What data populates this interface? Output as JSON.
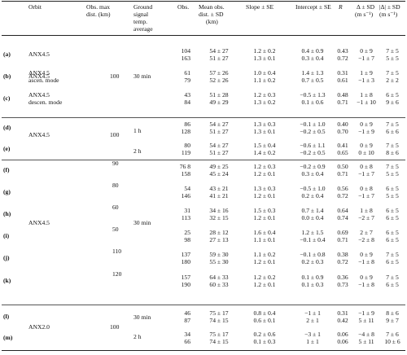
{
  "header": {
    "orbit": "Orbit",
    "obs_max": [
      "Obs. max",
      "dist. (km)"
    ],
    "ground": [
      "Ground",
      "signal",
      "temp.",
      "average"
    ],
    "obs": "Obs.",
    "mean": [
      "Mean obs.",
      "dist. ± SD",
      "(km)"
    ],
    "slope": "Slope ± SE",
    "intercept": "Intercept ± SE",
    "r": "R",
    "delta": [
      "Δ ± SD",
      "(m s⁻¹)"
    ],
    "absdelta": [
      "|Δ| ± SD",
      "(m s⁻¹)"
    ]
  },
  "groups": [
    {
      "label": "(a)",
      "orbit": [
        "ANX4.5"
      ],
      "rows": [
        [
          "104",
          "54 ± 27",
          "1.2 ± 0.2",
          "0.4 ± 0.9",
          "0.43",
          "0 ± 9",
          "7 ± 5"
        ],
        [
          "163",
          "51 ± 27",
          "1.3 ± 0.1",
          "0.3 ± 0.4",
          "0.72",
          "−1 ± 7",
          "5 ± 5"
        ]
      ]
    },
    {
      "label": "(b)",
      "orbit": [
        "ANX4.5",
        "ascen. mode"
      ],
      "rows": [
        [
          "61",
          "57 ± 26",
          "1.0 ± 0.4",
          "1.4 ± 1.3",
          "0.31",
          "1 ± 9",
          "7 ± 5"
        ],
        [
          "79",
          "52 ± 26",
          "1.1 ± 0.2",
          "0.7 ± 0.5",
          "0.61",
          "−1 ± 3",
          "2 ± 2"
        ]
      ]
    },
    {
      "label": "(c)",
      "orbit": [
        "ANX4.5",
        "descen. mode"
      ],
      "rows": [
        [
          "43",
          "51 ± 28",
          "1.2 ± 0.3",
          "−0.5 ± 1.3",
          "0.48",
          "1 ± 8",
          "6 ± 5"
        ],
        [
          "84",
          "49 ± 29",
          "1.3 ± 0.2",
          "0.1 ± 0.6",
          "0.71",
          "−1 ± 10",
          "9 ± 6"
        ]
      ]
    },
    {
      "label": "(d)",
      "rows": [
        [
          "86",
          "54 ± 27",
          "1.3 ± 0.3",
          "−0.1 ± 1.0",
          "0.40",
          "0 ± 9",
          "7 ± 5"
        ],
        [
          "128",
          "51 ± 27",
          "1.3 ± 0.1",
          "−0.2 ± 0.5",
          "0.70",
          "−1 ± 9",
          "6 ± 6"
        ]
      ]
    },
    {
      "label": "(e)",
      "rows": [
        [
          "80",
          "54 ± 27",
          "1.5 ± 0.4",
          "−0.6 ± 1.1",
          "0.41",
          "0 ± 9",
          "7 ± 5"
        ],
        [
          "119",
          "51 ± 27",
          "1.4 ± 0.2",
          "−0.2 ± 0.5",
          "0.65",
          "0 ± 10",
          "8 ± 6"
        ]
      ]
    },
    {
      "label": "(f)",
      "dist": "90",
      "rows": [
        [
          "76 8",
          "49 ± 25",
          "1.2 ± 0.3",
          "−0.2 ± 0.9",
          "0.50",
          "0 ± 8",
          "7 ± 5"
        ],
        [
          "158",
          "45 ± 24",
          "1.2 ± 0.1",
          "0.3 ± 0.4",
          "0.71",
          "−1 ± 7",
          "5 ± 5"
        ]
      ]
    },
    {
      "label": "(g)",
      "dist": "80",
      "rows": [
        [
          "54",
          "43 ± 21",
          "1.3 ± 0.3",
          "−0.5 ± 1.0",
          "0.56",
          "0 ± 8",
          "6 ± 5"
        ],
        [
          "146",
          "41 ± 21",
          "1.2 ± 0.1",
          "0.2 ± 0.4",
          "0.72",
          "−1 ± 7",
          "5 ± 5"
        ]
      ]
    },
    {
      "label": "(h)",
      "dist": "60",
      "rows": [
        [
          "31",
          "34 ± 16",
          "1.5 ± 0.3",
          "0.7 ± 1.4",
          "0.64",
          "1 ± 8",
          "6 ± 5"
        ],
        [
          "113",
          "32 ± 15",
          "1.2 ± 0.1",
          "0.0 ± 0.4",
          "0.74",
          "−2 ± 7",
          "6 ± 5"
        ]
      ]
    },
    {
      "label": "(i)",
      "dist": "50",
      "rows": [
        [
          "25",
          "28 ± 12",
          "1.6 ± 0.4",
          "1.2 ± 1.5",
          "0.69",
          "2 ± 7",
          "6 ± 5"
        ],
        [
          "98",
          "27 ± 13",
          "1.1 ± 0.1",
          "−0.1 ± 0.4",
          "0.71",
          "−2 ± 8",
          "6 ± 5"
        ]
      ]
    },
    {
      "label": "(j)",
      "dist": "110",
      "rows": [
        [
          "137",
          "59 ± 30",
          "1.1 ± 0.2",
          "−0.1 ± 0.8",
          "0.38",
          "0 ± 9",
          "7 ± 5"
        ],
        [
          "180",
          "55 ± 30",
          "1.2 ± 0.1",
          "0.2 ± 0.3",
          "0.72",
          "−1 ± 8",
          "6 ± 5"
        ]
      ]
    },
    {
      "label": "(k)",
      "dist": "120",
      "rows": [
        [
          "157",
          "64 ± 33",
          "1.2 ± 0.2",
          "0.1 ± 0.9",
          "0.36",
          "0 ± 9",
          "7 ± 5"
        ],
        [
          "190",
          "60 ± 33",
          "1.2 ± 0.1",
          "0.1 ± 0.3",
          "0.73",
          "−1 ± 8",
          "6 ± 5"
        ]
      ]
    },
    {
      "label": "(l)",
      "rows": [
        [
          "46",
          "75 ± 17",
          "0.8 ± 0.4",
          "−1 ± 1",
          "0.31",
          "−1 ± 9",
          "8 ± 6"
        ],
        [
          "87",
          "74 ± 15",
          "0.6 ± 0.1",
          "2 ± 1",
          "0.42",
          "5 ± 11",
          "9 ± 7"
        ]
      ]
    },
    {
      "label": "(m)",
      "rows": [
        [
          "34",
          "75 ± 17",
          "0.2 ± 0.6",
          "−3 ± 1",
          "0.06",
          "−4 ± 8",
          "7 ± 6"
        ],
        [
          "66",
          "74 ± 15",
          "0.1 ± 0.3",
          "1 ± 1",
          "0.06",
          "5 ± 11",
          "10 ± 6"
        ]
      ]
    }
  ],
  "merged": {
    "anx45_de": "ANX4.5",
    "anx45_fk": "ANX4.5",
    "anx20": "ANX2.0",
    "dist_100_abc": "100",
    "dist_100_de": "100",
    "dist_100_lm": "100",
    "t_30min_abc": "30 min",
    "t_1h": "1 h",
    "t_2h_de": "2 h",
    "t_30min_fk": "30 min",
    "t_30min_l": "30 min",
    "t_2h_m": "2 h"
  }
}
